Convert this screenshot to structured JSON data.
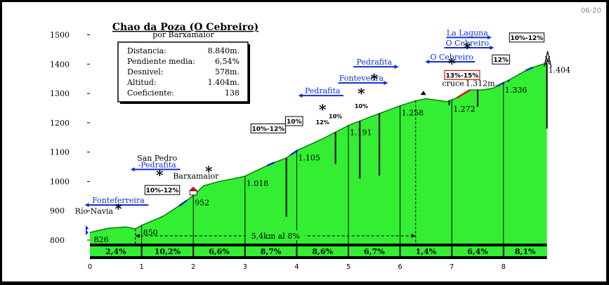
{
  "badge": "06-20",
  "chart_data": {
    "type": "area",
    "title": "Chao da Poza (O Cebreiro)",
    "subtitle": "por Barxamaior",
    "xlim": [
      0,
      8.84
    ],
    "ylim": [
      800,
      1500
    ],
    "x_ticks": [
      "0",
      "1",
      "2",
      "3",
      "4",
      "5",
      "6",
      "7",
      "8"
    ],
    "y_ticks": [
      "800",
      "900",
      "1000",
      "1100",
      "1200",
      "1300",
      "1400",
      "1500"
    ],
    "profile": {
      "x": [
        0,
        0.35,
        0.7,
        0.88,
        1.0,
        1.4,
        1.8,
        2.0,
        2.2,
        2.5,
        2.8,
        3.0,
        3.5,
        3.8,
        4.0,
        4.5,
        5.0,
        5.5,
        6.0,
        6.3,
        6.5,
        6.9,
        7.1,
        7.35,
        7.6,
        7.8,
        8.0,
        8.2,
        8.5,
        8.84
      ],
      "y": [
        826,
        840,
        845,
        838,
        850,
        880,
        925,
        952,
        985,
        1000,
        1010,
        1018,
        1060,
        1080,
        1105,
        1145,
        1191,
        1225,
        1258,
        1275,
        1282,
        1272,
        1285,
        1312,
        1312,
        1318,
        1336,
        1355,
        1385,
        1404
      ]
    },
    "steep_segment": {
      "x": [
        7.1,
        7.35
      ],
      "label": "13%-15%"
    },
    "altitude_labels": [
      {
        "x": 0.05,
        "y": 826,
        "text": "826"
      },
      {
        "x": 1.0,
        "y": 850,
        "text": "850"
      },
      {
        "x": 2.0,
        "y": 952,
        "text": "952"
      },
      {
        "x": 3.0,
        "y": 1018,
        "text": "1.018"
      },
      {
        "x": 4.0,
        "y": 1105,
        "text": "1.105"
      },
      {
        "x": 5.0,
        "y": 1191,
        "text": "1.191"
      },
      {
        "x": 6.0,
        "y": 1258,
        "text": "1.258"
      },
      {
        "x": 7.0,
        "y": 1272,
        "text": "1.272"
      },
      {
        "x": 8.0,
        "y": 1336,
        "text": "1.336"
      },
      {
        "x": 8.84,
        "y": 1404,
        "text": "1.404"
      }
    ],
    "segments": [
      {
        "from": 0,
        "to": 1,
        "grade": "2,4%"
      },
      {
        "from": 1,
        "to": 2,
        "grade": "10,2%"
      },
      {
        "from": 2,
        "to": 3,
        "grade": "6,6%"
      },
      {
        "from": 3,
        "to": 4,
        "grade": "8,7%"
      },
      {
        "from": 4,
        "to": 5,
        "grade": "8,6%"
      },
      {
        "from": 5,
        "to": 6,
        "grade": "6,7%"
      },
      {
        "from": 6,
        "to": 7,
        "grade": "1,4%"
      },
      {
        "from": 7,
        "to": 8,
        "grade": "6,4%"
      },
      {
        "from": 8,
        "to": 8.84,
        "grade": "8,1%"
      }
    ],
    "span_annotation": {
      "from": 0.88,
      "to": 6.3,
      "text": "5,4km al 8%"
    },
    "ramp_boxes": [
      {
        "x": 1.4,
        "y": 960,
        "text": "10%-12%"
      },
      {
        "x": 3.45,
        "y": 1170,
        "text": "10%-12%"
      },
      {
        "x": 3.95,
        "y": 1195,
        "text": "10%"
      },
      {
        "x": 7.95,
        "y": 1405,
        "text": "12%"
      },
      {
        "x": 8.45,
        "y": 1480,
        "text": "10%-12%"
      }
    ],
    "small_grades": [
      {
        "x": 4.5,
        "y": 1195,
        "text": "12%"
      },
      {
        "x": 4.75,
        "y": 1215,
        "text": "10%"
      },
      {
        "x": 5.25,
        "y": 1250,
        "text": "10%"
      }
    ],
    "places": [
      {
        "x": 0.08,
        "y": 890,
        "text": "Río Navia",
        "underline": false
      },
      {
        "x": 0.55,
        "y": 927,
        "text": "Fonteferreira",
        "underline": true,
        "arrow": "left"
      },
      {
        "x": 1.3,
        "y": 1070,
        "text": "San Pedro",
        "underline": false
      },
      {
        "x": 1.3,
        "y": 1048,
        "text": "-Pedrafita",
        "underline": true,
        "arrow": "left"
      },
      {
        "x": 2.05,
        "y": 1010,
        "text": "Barxamaior",
        "underline": false
      },
      {
        "x": 4.5,
        "y": 1300,
        "text": "Pedrafita",
        "underline": true,
        "arrow": "left"
      },
      {
        "x": 5.25,
        "y": 1343,
        "text": "Fontevedra",
        "underline": true,
        "arrow": "right"
      },
      {
        "x": 5.5,
        "y": 1398,
        "text": "Pedrafita",
        "underline": true,
        "arrow": "right"
      },
      {
        "x": 7.0,
        "y": 1415,
        "text": "O Cebreiro",
        "underline": true,
        "arrow": "left"
      },
      {
        "x": 7.3,
        "y": 1498,
        "text": "La Laguna",
        "underline": true,
        "arrow": "right"
      },
      {
        "x": 7.3,
        "y": 1463,
        "text": "O Cebreiro",
        "underline": true,
        "arrow": "right"
      }
    ],
    "cruce": {
      "x": 7.4,
      "y": 1320,
      "text": "cruce",
      "value": "1.312m."
    },
    "stars": [
      {
        "x": 0.55,
        "y": 890
      },
      {
        "x": 1.35,
        "y": 1005
      },
      {
        "x": 2.3,
        "y": 1018
      },
      {
        "x": 4.5,
        "y": 1228
      },
      {
        "x": 5.25,
        "y": 1283
      },
      {
        "x": 5.5,
        "y": 1333
      },
      {
        "x": 7.0,
        "y": 1385
      },
      {
        "x": 7.3,
        "y": 1438
      }
    ]
  },
  "info_box": {
    "rows": [
      {
        "label": "Distancia:",
        "value": "8.840m."
      },
      {
        "label": "Pendiente media:",
        "value": "6,54%"
      },
      {
        "label": "Desnivel:",
        "value": "578m."
      },
      {
        "label": "Altitud:",
        "value": "1.404m."
      },
      {
        "label": "Coeficiente:",
        "value": "138"
      }
    ]
  }
}
